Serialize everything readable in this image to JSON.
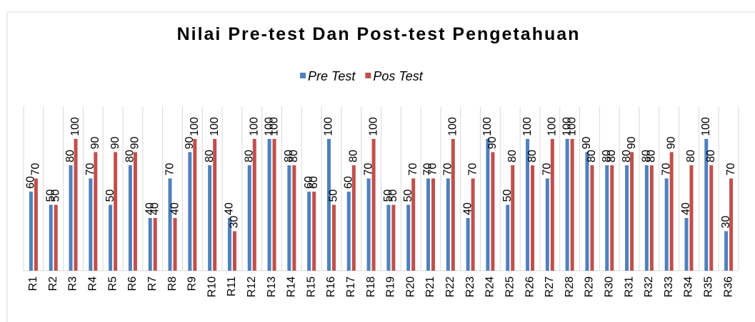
{
  "chart_data": {
    "type": "bar",
    "title": "Nilai Pre-test Dan Post-test Pengetahuan",
    "categories": [
      "R1",
      "R2",
      "R3",
      "R4",
      "R5",
      "R6",
      "R7",
      "R8",
      "R9",
      "R10",
      "R11",
      "R12",
      "R13",
      "R14",
      "R15",
      "R16",
      "R17",
      "R18",
      "R19",
      "R20",
      "R21",
      "R22",
      "R23",
      "R24",
      "R25",
      "R26",
      "R27",
      "R28",
      "R29",
      "R30",
      "R31",
      "R32",
      "R33",
      "R34",
      "R35",
      "R36"
    ],
    "series": [
      {
        "name": "Pre Test",
        "color": "#4f81bd",
        "values": [
          60,
          50,
          80,
          70,
          50,
          80,
          40,
          70,
          90,
          80,
          40,
          80,
          100,
          80,
          60,
          100,
          60,
          70,
          50,
          50,
          70,
          70,
          40,
          100,
          50,
          100,
          70,
          100,
          90,
          80,
          80,
          80,
          70,
          40,
          100,
          30
        ]
      },
      {
        "name": "Pos Test",
        "color": "#c0504d",
        "values": [
          70,
          50,
          100,
          90,
          90,
          90,
          40,
          40,
          100,
          100,
          30,
          100,
          100,
          80,
          60,
          50,
          80,
          100,
          50,
          70,
          70,
          100,
          70,
          90,
          80,
          80,
          100,
          100,
          80,
          80,
          90,
          80,
          90,
          80,
          80,
          70
        ]
      }
    ],
    "ylim": [
      0,
      100
    ],
    "grid": true,
    "legend": "top"
  }
}
